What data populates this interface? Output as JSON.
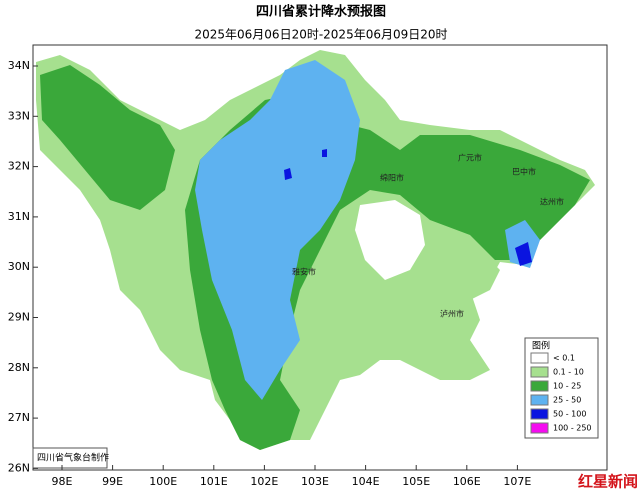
{
  "header": {
    "title": "四川省累计降水预报图",
    "subtitle": "2025年06月06日20时-2025年06月09日20时"
  },
  "axes": {
    "lat_ticks": [
      {
        "value": 26,
        "label": "26N"
      },
      {
        "value": 27,
        "label": "27N"
      },
      {
        "value": 28,
        "label": "28N"
      },
      {
        "value": 29,
        "label": "29N"
      },
      {
        "value": 30,
        "label": "30N"
      },
      {
        "value": 31,
        "label": "31N"
      },
      {
        "value": 32,
        "label": "32N"
      },
      {
        "value": 33,
        "label": "33N"
      },
      {
        "value": 34,
        "label": "34N"
      }
    ],
    "lon_ticks": [
      {
        "value": 98,
        "label": "98E"
      },
      {
        "value": 99,
        "label": "99E"
      },
      {
        "value": 100,
        "label": "100E"
      },
      {
        "value": 101,
        "label": "101E"
      },
      {
        "value": 102,
        "label": "102E"
      },
      {
        "value": 103,
        "label": "103E"
      },
      {
        "value": 104,
        "label": "104E"
      },
      {
        "value": 105,
        "label": "105E"
      },
      {
        "value": 106,
        "label": "106E"
      },
      {
        "value": 107,
        "label": "107E"
      }
    ]
  },
  "legend": {
    "title": "图例",
    "items": [
      {
        "label": "< 0.1",
        "color": "#ffffff"
      },
      {
        "label": "0.1 - 10",
        "color": "#a6e08f"
      },
      {
        "label": "10 - 25",
        "color": "#3aa83a"
      },
      {
        "label": "25 - 50",
        "color": "#5eb2f0"
      },
      {
        "label": "50 - 100",
        "color": "#0a14e0"
      },
      {
        "label": "100 - 250",
        "color": "#f50cf0"
      }
    ]
  },
  "cities": [
    "广元市",
    "巴中市",
    "达州市",
    "绵阳市",
    "泸州市",
    "雅安市"
  ],
  "credit": "四川省气象台制作",
  "watermark": "红星新闻"
}
